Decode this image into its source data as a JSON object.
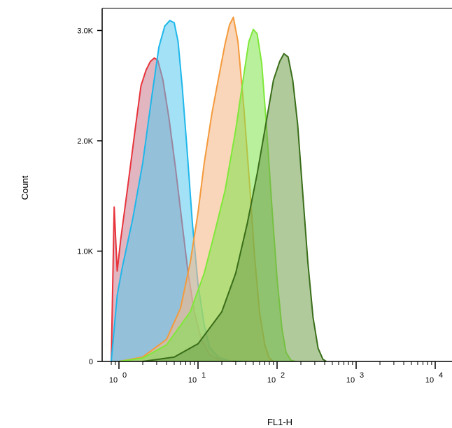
{
  "chart_data": {
    "type": "area",
    "title": "",
    "xlabel": "FL1-H",
    "ylabel": "Count",
    "x_scale": "log10",
    "xlim": [
      1,
      10000
    ],
    "ylim": [
      0,
      3200
    ],
    "grid": false,
    "legend": "none",
    "x_ticks": [
      {
        "value": 1,
        "base": "10",
        "exp": "0"
      },
      {
        "value": 10,
        "base": "10",
        "exp": "1"
      },
      {
        "value": 100,
        "base": "10",
        "exp": "2"
      },
      {
        "value": 1000,
        "base": "10",
        "exp": "3"
      },
      {
        "value": 10000,
        "base": "10",
        "exp": "4"
      }
    ],
    "y_ticks": [
      {
        "value": 0,
        "label": "0"
      },
      {
        "value": 1000,
        "label": "1.0K"
      },
      {
        "value": 2000,
        "label": "2.0K"
      },
      {
        "value": 3000,
        "label": "3.0K"
      }
    ],
    "series": [
      {
        "stroke": "#e8343c",
        "fill": "#c87a8e",
        "fill_opacity": 0.55,
        "points": [
          [
            0.8,
            0
          ],
          [
            0.87,
            1400
          ],
          [
            0.95,
            820
          ],
          [
            1.05,
            1100
          ],
          [
            1.3,
            1600
          ],
          [
            1.6,
            2100
          ],
          [
            1.9,
            2500
          ],
          [
            2.2,
            2640
          ],
          [
            2.5,
            2720
          ],
          [
            2.8,
            2750
          ],
          [
            3.1,
            2730
          ],
          [
            3.6,
            2550
          ],
          [
            4.3,
            2200
          ],
          [
            5.2,
            1750
          ],
          [
            6.3,
            1250
          ],
          [
            7.5,
            800
          ],
          [
            9,
            450
          ],
          [
            11,
            200
          ],
          [
            14,
            60
          ],
          [
            20,
            8
          ],
          [
            30,
            0
          ]
        ]
      },
      {
        "stroke": "#1fb7ea",
        "fill": "#57c9ef",
        "fill_opacity": 0.55,
        "points": [
          [
            0.8,
            0
          ],
          [
            0.95,
            600
          ],
          [
            1.1,
            850
          ],
          [
            1.5,
            1300
          ],
          [
            2,
            1800
          ],
          [
            2.6,
            2400
          ],
          [
            3.2,
            2850
          ],
          [
            3.8,
            3040
          ],
          [
            4.4,
            3090
          ],
          [
            5,
            3070
          ],
          [
            5.6,
            2900
          ],
          [
            6.3,
            2500
          ],
          [
            7.3,
            1900
          ],
          [
            8.5,
            1250
          ],
          [
            10,
            700
          ],
          [
            12,
            330
          ],
          [
            14,
            130
          ],
          [
            18,
            40
          ],
          [
            25,
            5
          ],
          [
            35,
            0
          ]
        ]
      },
      {
        "stroke": "#f49a3c",
        "fill": "#f5b98a",
        "fill_opacity": 0.6,
        "points": [
          [
            1,
            0
          ],
          [
            2,
            40
          ],
          [
            4,
            200
          ],
          [
            6,
            480
          ],
          [
            8,
            900
          ],
          [
            10,
            1350
          ],
          [
            12,
            1800
          ],
          [
            15,
            2250
          ],
          [
            18,
            2550
          ],
          [
            22,
            2880
          ],
          [
            25,
            3050
          ],
          [
            28,
            3120
          ],
          [
            32,
            2900
          ],
          [
            38,
            2300
          ],
          [
            45,
            1600
          ],
          [
            52,
            950
          ],
          [
            60,
            450
          ],
          [
            70,
            150
          ],
          [
            80,
            30
          ],
          [
            90,
            0
          ]
        ]
      },
      {
        "stroke": "#7fe83a",
        "fill": "#7fe34a",
        "fill_opacity": 0.55,
        "points": [
          [
            1,
            0
          ],
          [
            2,
            30
          ],
          [
            4,
            150
          ],
          [
            8,
            450
          ],
          [
            12,
            800
          ],
          [
            16,
            1150
          ],
          [
            22,
            1550
          ],
          [
            30,
            2100
          ],
          [
            38,
            2600
          ],
          [
            44,
            2900
          ],
          [
            50,
            3010
          ],
          [
            56,
            2970
          ],
          [
            64,
            2700
          ],
          [
            74,
            2100
          ],
          [
            86,
            1400
          ],
          [
            100,
            750
          ],
          [
            115,
            300
          ],
          [
            130,
            80
          ],
          [
            150,
            10
          ],
          [
            170,
            0
          ]
        ]
      },
      {
        "stroke": "#3a6e1a",
        "fill": "#6f9f4a",
        "fill_opacity": 0.55,
        "points": [
          [
            2,
            0
          ],
          [
            5,
            40
          ],
          [
            10,
            160
          ],
          [
            20,
            450
          ],
          [
            30,
            800
          ],
          [
            42,
            1250
          ],
          [
            56,
            1700
          ],
          [
            72,
            2150
          ],
          [
            90,
            2550
          ],
          [
            108,
            2720
          ],
          [
            122,
            2790
          ],
          [
            138,
            2760
          ],
          [
            158,
            2550
          ],
          [
            182,
            2150
          ],
          [
            210,
            1550
          ],
          [
            245,
            900
          ],
          [
            285,
            400
          ],
          [
            330,
            120
          ],
          [
            380,
            20
          ],
          [
            420,
            0
          ]
        ]
      }
    ]
  }
}
